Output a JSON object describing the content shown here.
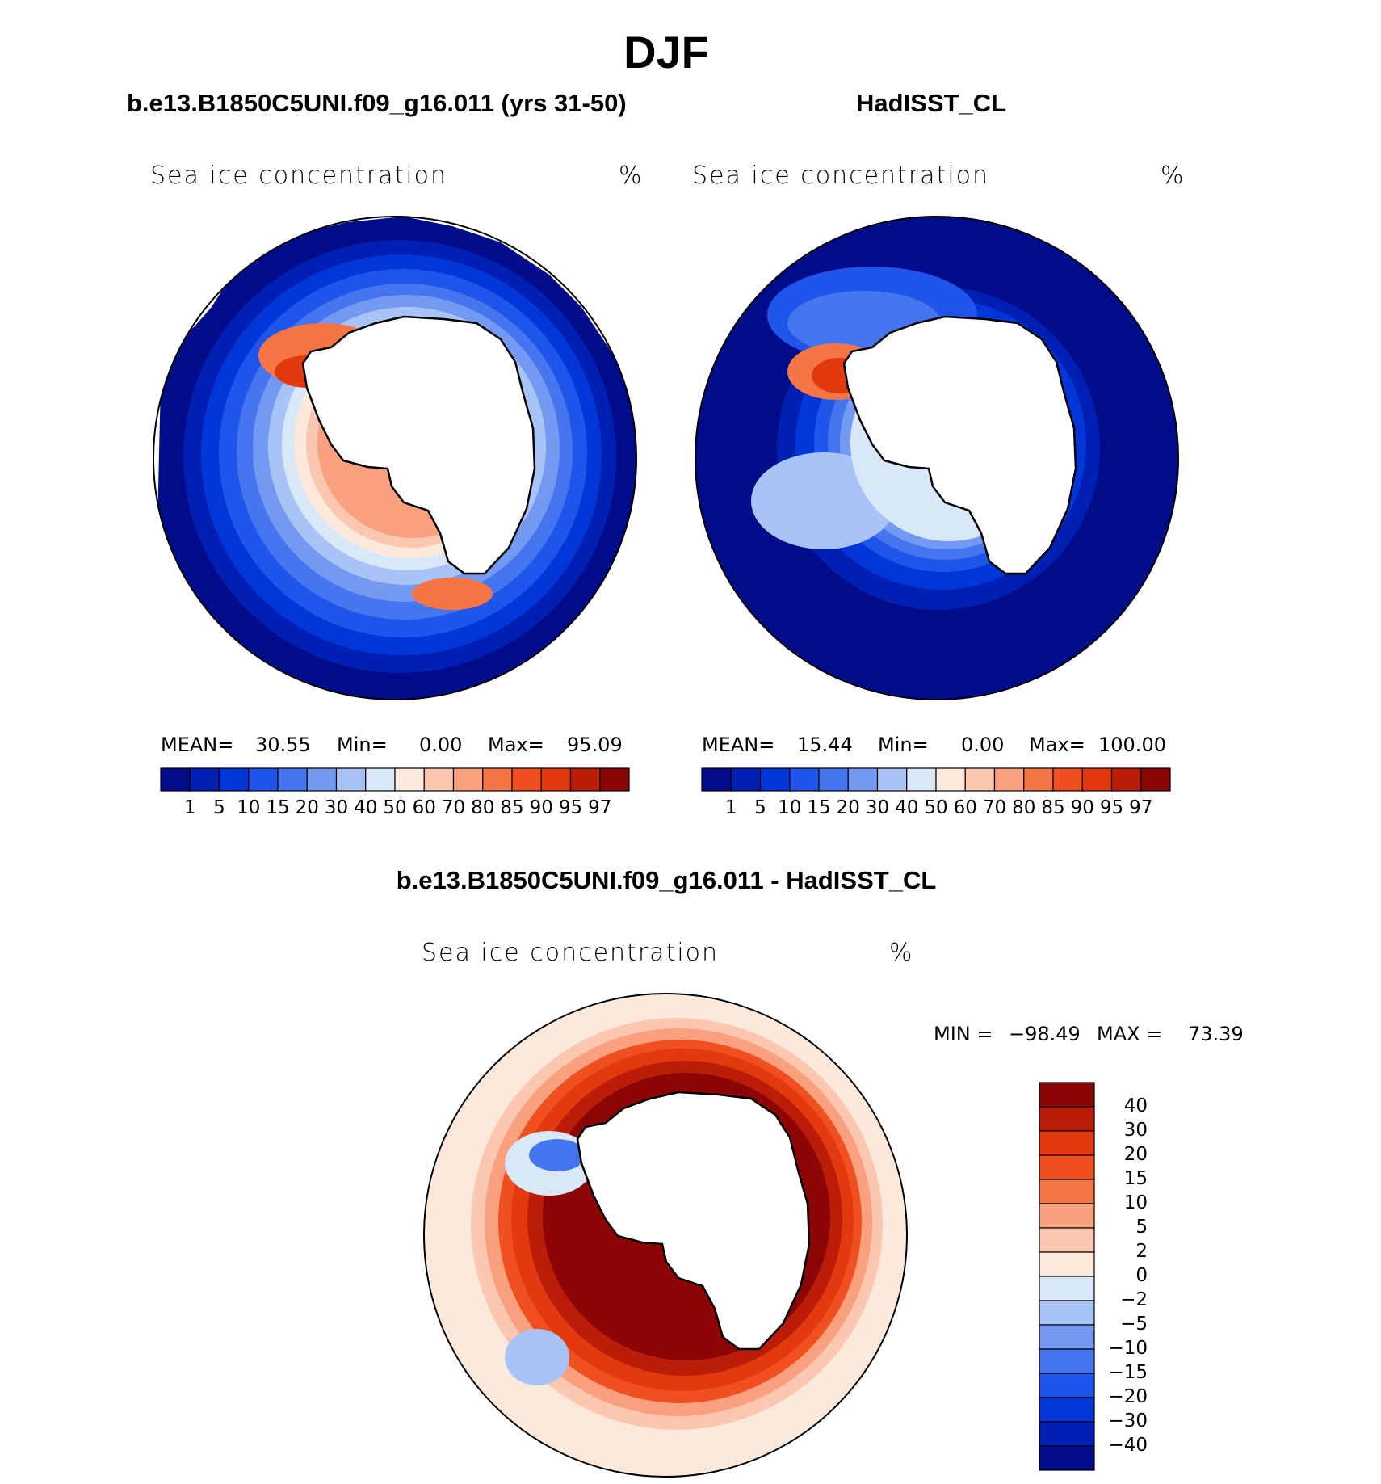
{
  "season_title": "DJF",
  "panels": [
    {
      "case_title": "b.e13.B1850C5UNI.f09_g16.011 (yrs 31-50)",
      "variable_label": "Sea ice concentration",
      "units": "%",
      "stats": {
        "mean_label": "MEAN=",
        "mean": "30.55",
        "min_label": "Min=",
        "min": "0.00",
        "max_label": "Max=",
        "max": "95.09"
      }
    },
    {
      "case_title": "HadISST_CL",
      "variable_label": "Sea ice concentration",
      "units": "%",
      "stats": {
        "mean_label": "MEAN=",
        "mean": "15.44",
        "min_label": "Min=",
        "min": "0.00",
        "max_label": "Max=",
        "max": "100.00"
      }
    }
  ],
  "abs_colorbar": {
    "levels": [
      "1",
      "5",
      "10",
      "15",
      "20",
      "30",
      "40",
      "50",
      "60",
      "70",
      "80",
      "85",
      "90",
      "95",
      "97"
    ],
    "colors": [
      "#000c8a",
      "#0020b3",
      "#0336d8",
      "#1f55ea",
      "#4676ef",
      "#7399f2",
      "#a8c3f6",
      "#d9e8f9",
      "#fde9dc",
      "#fbc7b0",
      "#f9a17e",
      "#f57644",
      "#f0501f",
      "#e23a0e",
      "#bc1d09",
      "#8c0606"
    ]
  },
  "diff_panel": {
    "title": "b.e13.B1850C5UNI.f09_g16.011 - HadISST_CL",
    "variable_label": "Sea ice concentration",
    "units": "%",
    "range_text": {
      "min_label": "MIN =",
      "min": "−98.49",
      "max_label": "MAX =",
      "max": "73.39"
    },
    "colorbar": {
      "levels": [
        "40",
        "30",
        "20",
        "15",
        "10",
        "5",
        "2",
        "0",
        "−2",
        "−5",
        "−10",
        "−15",
        "−20",
        "−30",
        "−40"
      ],
      "colors": [
        "#8c0606",
        "#bc1d09",
        "#e23a0e",
        "#f0501f",
        "#f57644",
        "#f9a17e",
        "#fbc7b0",
        "#fde9dc",
        "#d9e8f9",
        "#a8c3f6",
        "#7399f2",
        "#4676ef",
        "#1f55ea",
        "#0336d8",
        "#0020b3",
        "#000c8a"
      ]
    }
  }
}
